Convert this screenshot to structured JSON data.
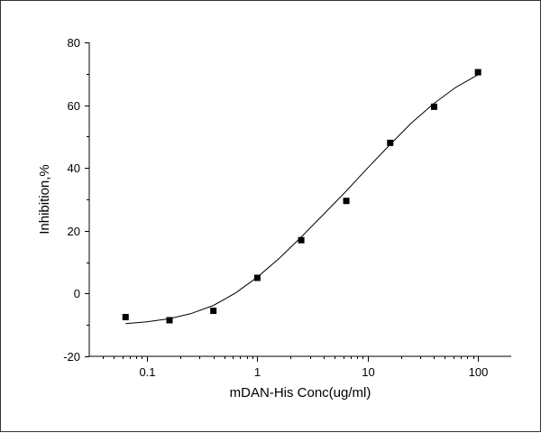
{
  "chart_data": {
    "type": "scatter",
    "title": "",
    "xlabel": "mDAN-His Conc(ug/ml)",
    "ylabel": "Inhibition,%",
    "x_scale": "log",
    "xlim": [
      0.03,
      200
    ],
    "ylim": [
      -20,
      80
    ],
    "x_ticks": [
      0.1,
      1,
      10,
      100
    ],
    "x_tick_labels": [
      "0.1",
      "1",
      "10",
      "100"
    ],
    "y_ticks": [
      -20,
      0,
      20,
      40,
      60,
      80
    ],
    "y_tick_labels": [
      "-20",
      "0",
      "20",
      "40",
      "60",
      "80"
    ],
    "grid": false,
    "legend": "none",
    "series": [
      {
        "marker": "square",
        "color": "#000000",
        "points": [
          {
            "x": 0.064,
            "y": -7.5
          },
          {
            "x": 0.16,
            "y": -8.5
          },
          {
            "x": 0.4,
            "y": -5.5
          },
          {
            "x": 1.0,
            "y": 5.0
          },
          {
            "x": 2.5,
            "y": 17.0
          },
          {
            "x": 6.4,
            "y": 29.5
          },
          {
            "x": 16.0,
            "y": 48.0
          },
          {
            "x": 40.0,
            "y": 59.5
          },
          {
            "x": 100.0,
            "y": 70.5
          }
        ]
      }
    ],
    "fit_curve": {
      "type": "logistic",
      "color": "#000000",
      "points": [
        {
          "x": 0.064,
          "y": -9.6
        },
        {
          "x": 0.1,
          "y": -9.0
        },
        {
          "x": 0.16,
          "y": -8.0
        },
        {
          "x": 0.25,
          "y": -6.4
        },
        {
          "x": 0.4,
          "y": -3.8
        },
        {
          "x": 0.63,
          "y": 0.1
        },
        {
          "x": 1.0,
          "y": 5.2
        },
        {
          "x": 1.6,
          "y": 11.4
        },
        {
          "x": 2.5,
          "y": 18.0
        },
        {
          "x": 4.0,
          "y": 25.3
        },
        {
          "x": 6.3,
          "y": 32.4
        },
        {
          "x": 10.0,
          "y": 40.0
        },
        {
          "x": 16.0,
          "y": 47.5
        },
        {
          "x": 25.0,
          "y": 54.4
        },
        {
          "x": 40.0,
          "y": 60.6
        },
        {
          "x": 63.0,
          "y": 65.7
        },
        {
          "x": 100.0,
          "y": 69.7
        }
      ]
    }
  }
}
